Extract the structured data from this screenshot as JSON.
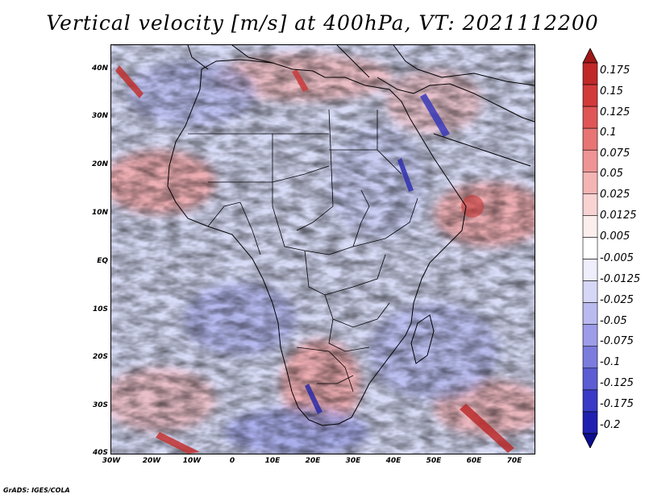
{
  "title": "Vertical velocity [m/s] at 400hPa, VT: 2021112200",
  "credit": "GrADS: IGES/COLA",
  "map": {
    "region": "Africa",
    "lat_labels": [
      "40N",
      "30N",
      "20N",
      "10N",
      "EQ",
      "10S",
      "20S",
      "30S",
      "40S"
    ],
    "lat_values": [
      40,
      30,
      20,
      10,
      0,
      -10,
      -20,
      -30,
      -40
    ],
    "lon_labels": [
      "30W",
      "20W",
      "10W",
      "0",
      "10E",
      "20E",
      "30E",
      "40E",
      "50E",
      "60E",
      "70E"
    ],
    "lon_values": [
      -30,
      -20,
      -10,
      0,
      10,
      20,
      30,
      40,
      50,
      60,
      70
    ],
    "lon_range": [
      -30,
      75
    ],
    "lat_range": [
      -40,
      45
    ]
  },
  "colorbar": {
    "labels": [
      "0.175",
      "0.15",
      "0.125",
      "0.1",
      "0.075",
      "0.05",
      "0.025",
      "0.0125",
      "0.005",
      "-0.005",
      "-0.0125",
      "-0.025",
      "-0.05",
      "-0.075",
      "-0.1",
      "-0.125",
      "-0.175",
      "-0.2"
    ],
    "colors": [
      "#a01818",
      "#c12828",
      "#d33a3a",
      "#e05656",
      "#e87474",
      "#ef9494",
      "#f5b4b4",
      "#f9d2d2",
      "#fdeeee",
      "#ffffff",
      "#eeeefc",
      "#d6d6f6",
      "#babaf0",
      "#9c9ce8",
      "#7c7cdf",
      "#5c5cd4",
      "#3a3ac6",
      "#2020b0",
      "#0d0d90"
    ]
  }
}
